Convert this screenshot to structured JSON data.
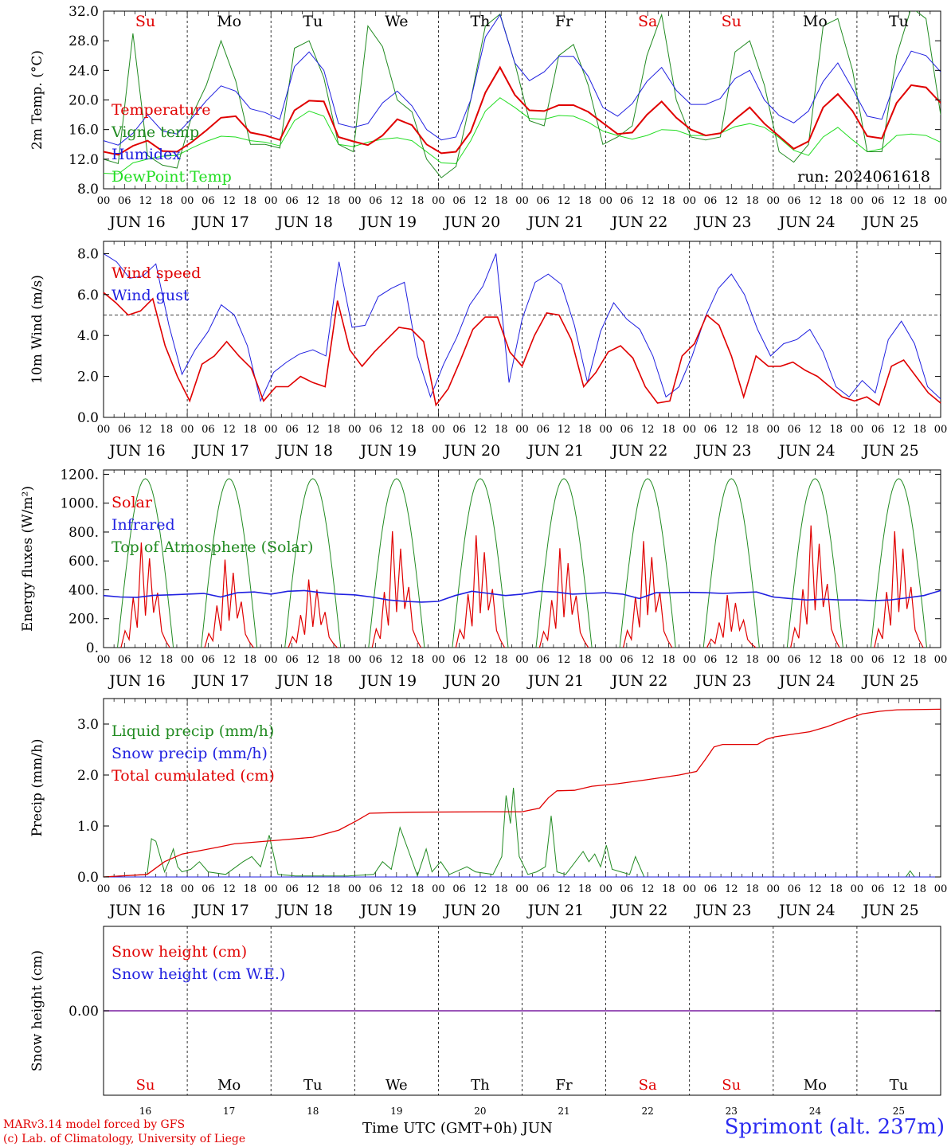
{
  "chart_data": [
    {
      "panel_id": "temp",
      "type": "line",
      "ylabel": "2m Temp. (°C)",
      "ylim": [
        8,
        32
      ],
      "yticks": [
        "8.0",
        "12.0",
        "16.0",
        "20.0",
        "24.0",
        "28.0",
        "32.0"
      ],
      "ytick_values": [
        8,
        12,
        16,
        20,
        24,
        28,
        32
      ],
      "legend": [
        "Temperature",
        "Vigne temp",
        "Humidex",
        "DewPoint Temp"
      ],
      "annotation": "run: 2024061618",
      "day_names": [
        "Su",
        "Mo",
        "Tu",
        "We",
        "Th",
        "Fr",
        "Sa",
        "Su",
        "Mo",
        "Tu"
      ],
      "day_colors": [
        "#e00000",
        "#000000",
        "#000000",
        "#000000",
        "#000000",
        "#000000",
        "#e00000",
        "#e00000",
        "#000000",
        "#000000"
      ],
      "series": [
        {
          "name": "Temperature",
          "color": "#e00000",
          "values": [
            13.0,
            12.6,
            13.8,
            14.5,
            13.1,
            13.0,
            14.3,
            15.9,
            17.6,
            17.8,
            15.6,
            15.2,
            14.6,
            18.6,
            19.9,
            19.8,
            15.0,
            14.4,
            13.9,
            15.2,
            17.4,
            16.6,
            14.0,
            12.8,
            13.0,
            15.7,
            21.0,
            24.4,
            20.7,
            18.6,
            18.5,
            19.3,
            19.3,
            18.4,
            16.9,
            15.4,
            15.6,
            18.0,
            19.8,
            17.6,
            16.0,
            15.2,
            15.5,
            17.4,
            19.0,
            16.8,
            15.1,
            13.4,
            14.4,
            19.0,
            20.8,
            18.5,
            15.1,
            14.8,
            19.6,
            22.0,
            21.7,
            19.6
          ]
        },
        {
          "name": "Vigne temp",
          "color": "#228b22",
          "values": [
            12.0,
            11.4,
            29.0,
            12.5,
            11.2,
            10.8,
            17.8,
            22.0,
            28.0,
            22.6,
            14.0,
            14.0,
            13.5,
            27.0,
            28.0,
            23.0,
            14.0,
            13.0,
            30.0,
            27.2,
            20.0,
            18.4,
            12.0,
            9.5,
            11.0,
            20.0,
            30.0,
            31.6,
            25.0,
            17.2,
            16.5,
            26.0,
            27.5,
            22.0,
            14.0,
            15.0,
            16.5,
            26.0,
            31.5,
            20.0,
            15.0,
            14.6,
            15.0,
            26.5,
            28.0,
            22.0,
            13.0,
            11.6,
            14.0,
            30.0,
            31.0,
            24.0,
            13.0,
            13.0,
            26.0,
            32.5,
            31.0,
            18.0
          ]
        },
        {
          "name": "Humidex",
          "color": "#2020e0",
          "values": [
            14.5,
            13.9,
            15.5,
            18.0,
            15.8,
            15.4,
            17.5,
            19.9,
            21.9,
            21.2,
            18.8,
            18.3,
            17.4,
            24.5,
            26.5,
            24.0,
            16.8,
            16.3,
            16.8,
            19.6,
            21.2,
            19.2,
            16.0,
            14.6,
            15.0,
            20.0,
            28.5,
            31.5,
            25.0,
            22.6,
            23.8,
            25.9,
            25.9,
            23.2,
            19.0,
            17.8,
            19.5,
            22.5,
            24.4,
            21.3,
            19.4,
            19.4,
            20.2,
            22.9,
            24.0,
            20.0,
            17.9,
            16.9,
            18.5,
            22.5,
            25.0,
            21.5,
            17.8,
            17.4,
            23.0,
            26.6,
            26.0,
            23.8
          ]
        },
        {
          "name": "DewPoint Temp",
          "color": "#22dd22",
          "values": [
            10.1,
            10.0,
            11.5,
            12.0,
            12.4,
            12.5,
            13.5,
            14.4,
            15.1,
            15.0,
            14.5,
            14.3,
            13.8,
            17.2,
            18.5,
            17.8,
            14.0,
            13.7,
            14.3,
            14.7,
            14.9,
            14.5,
            13.0,
            11.5,
            11.4,
            14.5,
            18.5,
            20.3,
            19.0,
            17.5,
            17.4,
            17.9,
            17.8,
            17.0,
            15.8,
            15.2,
            14.7,
            15.2,
            16.0,
            15.9,
            15.2,
            15.2,
            15.5,
            16.4,
            16.8,
            16.3,
            14.9,
            13.2,
            12.5,
            15.0,
            16.3,
            14.6,
            13.0,
            13.4,
            15.2,
            15.4,
            15.2,
            14.3
          ]
        }
      ]
    },
    {
      "panel_id": "wind",
      "type": "line",
      "ylabel": "10m Wind (m/s)",
      "ylim": [
        0,
        8.6
      ],
      "yticks": [
        "0.0",
        "2.0",
        "4.0",
        "6.0",
        "8.0"
      ],
      "ytick_values": [
        0,
        2,
        4,
        6,
        8
      ],
      "legend": [
        "Wind speed",
        "Wind gust"
      ],
      "reference_line": 5.0,
      "series": [
        {
          "name": "Wind speed",
          "color": "#e00000",
          "values": [
            6.1,
            5.6,
            5.0,
            5.2,
            5.8,
            3.5,
            2.0,
            0.8,
            2.6,
            3.0,
            3.7,
            3.0,
            2.4,
            0.8,
            1.5,
            1.5,
            2.0,
            1.7,
            1.5,
            5.7,
            3.3,
            2.5,
            3.2,
            3.8,
            4.4,
            4.3,
            3.7,
            0.6,
            1.4,
            2.8,
            4.3,
            4.9,
            4.9,
            3.2,
            2.5,
            4.0,
            5.1,
            5.0,
            3.8,
            1.5,
            2.2,
            3.2,
            3.5,
            2.9,
            1.5,
            0.7,
            0.8,
            3.0,
            3.6,
            5.0,
            4.5,
            3.0,
            1.0,
            3.0,
            2.5,
            2.5,
            2.7,
            2.3,
            2.0,
            1.5,
            1.0,
            0.8,
            1.0,
            0.6,
            2.5,
            2.8,
            2.0,
            1.2,
            0.7
          ]
        },
        {
          "name": "Wind gust",
          "color": "#2020e0",
          "values": [
            8.0,
            7.6,
            6.8,
            6.9,
            7.5,
            4.5,
            2.1,
            3.3,
            4.2,
            5.5,
            5.0,
            3.5,
            0.8,
            2.2,
            2.7,
            3.1,
            3.3,
            3.0,
            7.6,
            4.4,
            4.5,
            5.9,
            6.3,
            6.6,
            3.0,
            1.0,
            2.6,
            3.9,
            5.5,
            6.4,
            8.0,
            1.7,
            4.8,
            6.6,
            7.0,
            6.5,
            4.5,
            1.7,
            4.2,
            5.6,
            4.8,
            4.3,
            3.0,
            1.0,
            1.5,
            3.0,
            4.9,
            6.3,
            7.0,
            6.0,
            4.3,
            3.0,
            3.6,
            3.8,
            4.3,
            3.2,
            1.5,
            1.0,
            1.8,
            1.2,
            3.8,
            4.7,
            3.6,
            1.5,
            0.9
          ]
        }
      ]
    },
    {
      "panel_id": "energy",
      "type": "line",
      "ylabel": "Energy fluxes (W/m²)",
      "ylim": [
        0,
        1230
      ],
      "yticks": [
        "0.",
        "200.",
        "400.",
        "600.",
        "800.",
        "1000.",
        "1200."
      ],
      "ytick_values": [
        0,
        200,
        400,
        600,
        800,
        1000,
        1200
      ],
      "legend": [
        "Solar",
        "Infrared",
        "Top of Atmosphere (Solar)"
      ],
      "series": [
        {
          "name": "Solar",
          "color": "#e00000",
          "peaks": [
            740,
            620,
            480,
            820,
            790,
            700,
            750,
            370,
            860,
            820
          ]
        },
        {
          "name": "Infrared",
          "color": "#2020e0",
          "values": [
            360,
            350,
            348,
            362,
            365,
            370,
            375,
            350,
            380,
            385,
            370,
            390,
            395,
            380,
            370,
            365,
            350,
            330,
            320,
            315,
            320,
            360,
            390,
            375,
            360,
            370,
            390,
            385,
            370,
            375,
            380,
            370,
            340,
            380,
            380,
            382,
            380,
            375,
            380,
            385,
            350,
            340,
            330,
            335,
            330,
            330,
            325,
            330,
            345,
            360,
            395
          ]
        },
        {
          "name": "Top of Atmosphere (Solar)",
          "color": "#228b22",
          "peak": 1170,
          "day_start_hour": 4,
          "day_end_hour": 20
        }
      ]
    },
    {
      "panel_id": "precip",
      "type": "line",
      "ylabel": "Precip (mm/h)",
      "ylim": [
        0,
        3.5
      ],
      "yticks": [
        "0.0",
        "1.0",
        "2.0",
        "3.0"
      ],
      "ytick_values": [
        0,
        1,
        2,
        3
      ],
      "legend": [
        "Liquid precip (mm/h)",
        "Snow precip (mm/h)",
        "Total cumulated (cm)"
      ],
      "series": [
        {
          "name": "Liquid precip (mm/h)",
          "color": "#228b22",
          "points": [
            [
              0,
              0
            ],
            [
              30,
              0.05
            ],
            [
              33,
              0.75
            ],
            [
              36,
              0.7
            ],
            [
              39,
              0.4
            ],
            [
              42,
              0.1
            ],
            [
              45,
              0.3
            ],
            [
              48,
              0.55
            ],
            [
              51,
              0.2
            ],
            [
              54,
              0.1
            ],
            [
              60,
              0.15
            ],
            [
              66,
              0.3
            ],
            [
              72,
              0.1
            ],
            [
              84,
              0.05
            ],
            [
              96,
              0.3
            ],
            [
              102,
              0.4
            ],
            [
              108,
              0.2
            ],
            [
              114,
              0.82
            ],
            [
              120,
              0.05
            ],
            [
              132,
              0.02
            ],
            [
              168,
              0.02
            ],
            [
              186,
              0.05
            ],
            [
              192,
              0.3
            ],
            [
              198,
              0.15
            ],
            [
              204,
              0.97
            ],
            [
              210,
              0.5
            ],
            [
              216,
              0.02
            ],
            [
              222,
              0.55
            ],
            [
              226,
              0.1
            ],
            [
              232,
              0.3
            ],
            [
              238,
              0.05
            ],
            [
              250,
              0.2
            ],
            [
              256,
              0.1
            ],
            [
              268,
              0.05
            ],
            [
              274,
              0.4
            ],
            [
              277,
              1.6
            ],
            [
              280,
              1.05
            ],
            [
              282,
              1.75
            ],
            [
              286,
              0.4
            ],
            [
              292,
              0.05
            ],
            [
              298,
              0.1
            ],
            [
              304,
              0.2
            ],
            [
              308,
              1.2
            ],
            [
              312,
              0.1
            ],
            [
              318,
              0.05
            ],
            [
              330,
              0.5
            ],
            [
              334,
              0.3
            ],
            [
              338,
              0.45
            ],
            [
              342,
              0.2
            ],
            [
              346,
              0.62
            ],
            [
              350,
              0.15
            ],
            [
              356,
              0.1
            ],
            [
              362,
              0.05
            ],
            [
              366,
              0.4
            ],
            [
              372,
              0.0
            ],
            [
              552,
              0.0
            ],
            [
              555,
              0.12
            ],
            [
              558,
              0.0
            ],
            [
              576,
              0.0
            ]
          ]
        },
        {
          "name": "Snow precip (mm/h)",
          "color": "#2020e0",
          "points": [
            [
              0,
              0
            ],
            [
              576,
              0
            ]
          ]
        },
        {
          "name": "Total cumulated (cm)",
          "color": "#e00000",
          "points": [
            [
              0,
              0
            ],
            [
              30,
              0.05
            ],
            [
              42,
              0.3
            ],
            [
              54,
              0.45
            ],
            [
              78,
              0.58
            ],
            [
              90,
              0.65
            ],
            [
              120,
              0.72
            ],
            [
              144,
              0.78
            ],
            [
              162,
              0.92
            ],
            [
              174,
              1.1
            ],
            [
              183,
              1.25
            ],
            [
              210,
              1.27
            ],
            [
              264,
              1.28
            ],
            [
              288,
              1.28
            ],
            [
              300,
              1.35
            ],
            [
              306,
              1.55
            ],
            [
              312,
              1.69
            ],
            [
              324,
              1.7
            ],
            [
              336,
              1.78
            ],
            [
              354,
              1.83
            ],
            [
              372,
              1.9
            ],
            [
              396,
              2.0
            ],
            [
              408,
              2.07
            ],
            [
              414,
              2.3
            ],
            [
              420,
              2.55
            ],
            [
              426,
              2.6
            ],
            [
              450,
              2.6
            ],
            [
              456,
              2.7
            ],
            [
              462,
              2.75
            ],
            [
              486,
              2.85
            ],
            [
              498,
              2.95
            ],
            [
              510,
              3.08
            ],
            [
              522,
              3.2
            ],
            [
              534,
              3.25
            ],
            [
              546,
              3.28
            ],
            [
              576,
              3.29
            ]
          ]
        }
      ]
    },
    {
      "panel_id": "snow",
      "type": "line",
      "ylabel": "Snow height (cm)",
      "ylim": [
        -1,
        1
      ],
      "yticks": [
        "0.00"
      ],
      "ytick_values": [
        0
      ],
      "legend": [
        "Snow height (cm)",
        "Snow height (cm W.E.)"
      ],
      "series": [
        {
          "name": "Snow height (cm)",
          "color": "#e00000",
          "values": [
            0,
            0
          ]
        },
        {
          "name": "Snow height (cm W.E.)",
          "color": "#2020e0",
          "values": [
            0,
            0
          ]
        }
      ]
    }
  ],
  "x_axis": {
    "hour_labels": [
      "00",
      "06",
      "12",
      "18"
    ],
    "date_labels": [
      "JUN 16",
      "JUN 17",
      "JUN 18",
      "JUN 19",
      "JUN 20",
      "JUN 21",
      "JUN 22",
      "JUN 23",
      "JUN 24",
      "JUN 25"
    ],
    "bottom_day_numbers": [
      "16",
      "17",
      "18",
      "19",
      "20",
      "21",
      "22",
      "23",
      "24",
      "25"
    ],
    "xlabel": "Time UTC (GMT+0h)",
    "month": "JUN"
  },
  "footer": {
    "credit_line1": "MARv3.14 model forced by GFS",
    "credit_line2": "(c) Lab. of Climatology, University of Liege",
    "location": "Sprimont (alt. 237m)"
  },
  "colors": {
    "red": "#e00000",
    "green": "#228b22",
    "blue": "#2020e0",
    "light_green": "#22dd22",
    "purple": "#7a1fa0"
  }
}
